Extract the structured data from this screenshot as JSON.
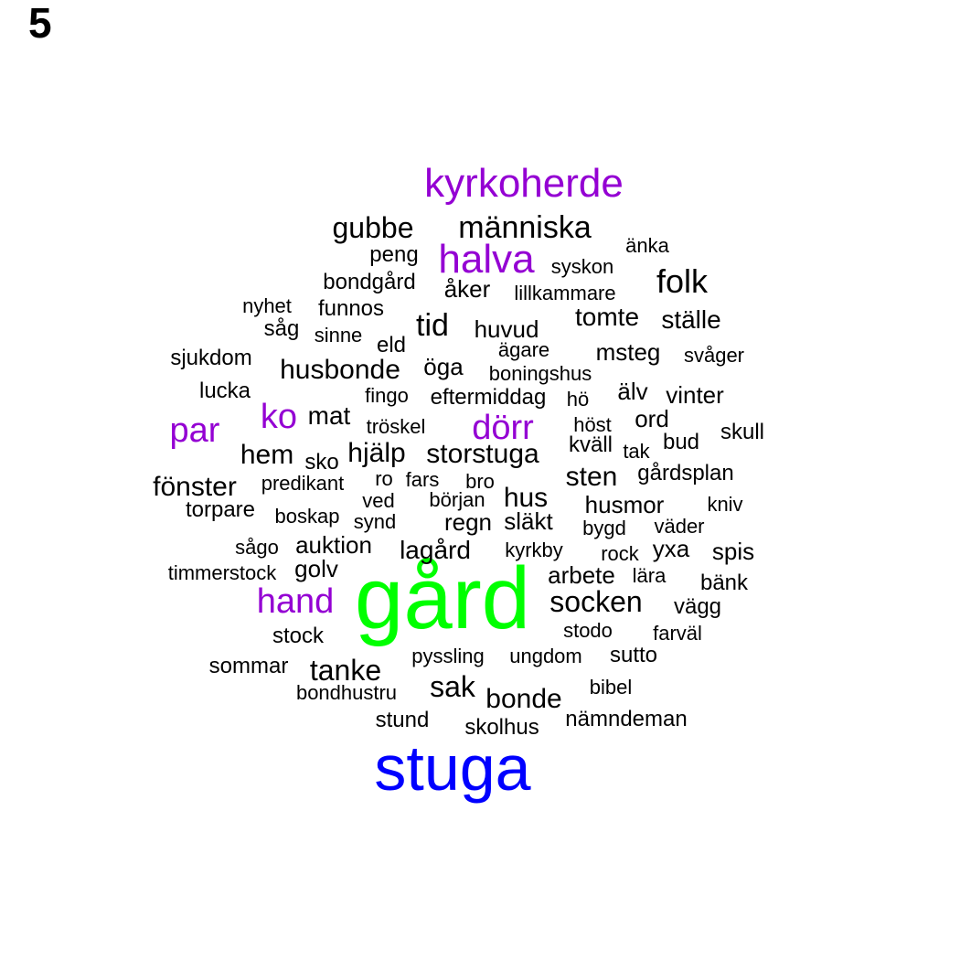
{
  "panel_label": "5",
  "colors": {
    "tier_1": "#00ff00",
    "tier_2": "#0000ff",
    "tier_3": "#9400d3",
    "tier_4": "#000000"
  },
  "words": [
    {
      "text": "gård",
      "tier": 1
    },
    {
      "text": "stuga",
      "tier": 2
    },
    {
      "text": "kyrkoherde",
      "tier": 3
    },
    {
      "text": "halva",
      "tier": 3
    },
    {
      "text": "par",
      "tier": 3
    },
    {
      "text": "ko",
      "tier": 3
    },
    {
      "text": "dörr",
      "tier": 3
    },
    {
      "text": "hand",
      "tier": 3
    },
    {
      "text": "gubbe",
      "tier": 4
    },
    {
      "text": "människa",
      "tier": 4
    },
    {
      "text": "änka",
      "tier": 4
    },
    {
      "text": "peng",
      "tier": 4
    },
    {
      "text": "syskon",
      "tier": 4
    },
    {
      "text": "folk",
      "tier": 4
    },
    {
      "text": "bondgård",
      "tier": 4
    },
    {
      "text": "åker",
      "tier": 4
    },
    {
      "text": "lillkammare",
      "tier": 4
    },
    {
      "text": "nyhet",
      "tier": 4
    },
    {
      "text": "funnos",
      "tier": 4
    },
    {
      "text": "tomte",
      "tier": 4
    },
    {
      "text": "ställe",
      "tier": 4
    },
    {
      "text": "såg",
      "tier": 4
    },
    {
      "text": "sinne",
      "tier": 4
    },
    {
      "text": "tid",
      "tier": 4
    },
    {
      "text": "huvud",
      "tier": 4
    },
    {
      "text": "eld",
      "tier": 4
    },
    {
      "text": "ägare",
      "tier": 4
    },
    {
      "text": "msteg",
      "tier": 4
    },
    {
      "text": "svåger",
      "tier": 4
    },
    {
      "text": "sjukdom",
      "tier": 4
    },
    {
      "text": "husbonde",
      "tier": 4
    },
    {
      "text": "öga",
      "tier": 4
    },
    {
      "text": "boningshus",
      "tier": 4
    },
    {
      "text": "lucka",
      "tier": 4
    },
    {
      "text": "fingo",
      "tier": 4
    },
    {
      "text": "eftermiddag",
      "tier": 4
    },
    {
      "text": "hö",
      "tier": 4
    },
    {
      "text": "älv",
      "tier": 4
    },
    {
      "text": "vinter",
      "tier": 4
    },
    {
      "text": "mat",
      "tier": 4
    },
    {
      "text": "tröskel",
      "tier": 4
    },
    {
      "text": "höst",
      "tier": 4
    },
    {
      "text": "ord",
      "tier": 4
    },
    {
      "text": "skull",
      "tier": 4
    },
    {
      "text": "kväll",
      "tier": 4
    },
    {
      "text": "bud",
      "tier": 4
    },
    {
      "text": "tak",
      "tier": 4
    },
    {
      "text": "hem",
      "tier": 4
    },
    {
      "text": "sko",
      "tier": 4
    },
    {
      "text": "hjälp",
      "tier": 4
    },
    {
      "text": "storstuga",
      "tier": 4
    },
    {
      "text": "sten",
      "tier": 4
    },
    {
      "text": "gårdsplan",
      "tier": 4
    },
    {
      "text": "fönster",
      "tier": 4
    },
    {
      "text": "predikant",
      "tier": 4
    },
    {
      "text": "ro",
      "tier": 4
    },
    {
      "text": "fars",
      "tier": 4
    },
    {
      "text": "bro",
      "tier": 4
    },
    {
      "text": "hus",
      "tier": 4
    },
    {
      "text": "husmor",
      "tier": 4
    },
    {
      "text": "kniv",
      "tier": 4
    },
    {
      "text": "torpare",
      "tier": 4
    },
    {
      "text": "ved",
      "tier": 4
    },
    {
      "text": "början",
      "tier": 4
    },
    {
      "text": "boskap",
      "tier": 4
    },
    {
      "text": "regn",
      "tier": 4
    },
    {
      "text": "släkt",
      "tier": 4
    },
    {
      "text": "synd",
      "tier": 4
    },
    {
      "text": "bygd",
      "tier": 4
    },
    {
      "text": "väder",
      "tier": 4
    },
    {
      "text": "sågo",
      "tier": 4
    },
    {
      "text": "auktion",
      "tier": 4
    },
    {
      "text": "lagård",
      "tier": 4
    },
    {
      "text": "kyrkby",
      "tier": 4
    },
    {
      "text": "rock",
      "tier": 4
    },
    {
      "text": "yxa",
      "tier": 4
    },
    {
      "text": "spis",
      "tier": 4
    },
    {
      "text": "timmerstock",
      "tier": 4
    },
    {
      "text": "golv",
      "tier": 4
    },
    {
      "text": "arbete",
      "tier": 4
    },
    {
      "text": "lära",
      "tier": 4
    },
    {
      "text": "bänk",
      "tier": 4
    },
    {
      "text": "socken",
      "tier": 4
    },
    {
      "text": "vägg",
      "tier": 4
    },
    {
      "text": "stodo",
      "tier": 4
    },
    {
      "text": "farväl",
      "tier": 4
    },
    {
      "text": "stock",
      "tier": 4
    },
    {
      "text": "pyssling",
      "tier": 4
    },
    {
      "text": "ungdom",
      "tier": 4
    },
    {
      "text": "sutto",
      "tier": 4
    },
    {
      "text": "sommar",
      "tier": 4
    },
    {
      "text": "tanke",
      "tier": 4
    },
    {
      "text": "sak",
      "tier": 4
    },
    {
      "text": "bibel",
      "tier": 4
    },
    {
      "text": "bondhustru",
      "tier": 4
    },
    {
      "text": "bonde",
      "tier": 4
    },
    {
      "text": "stund",
      "tier": 4
    },
    {
      "text": "skolhus",
      "tier": 4
    },
    {
      "text": "nämndeman",
      "tier": 4
    }
  ]
}
